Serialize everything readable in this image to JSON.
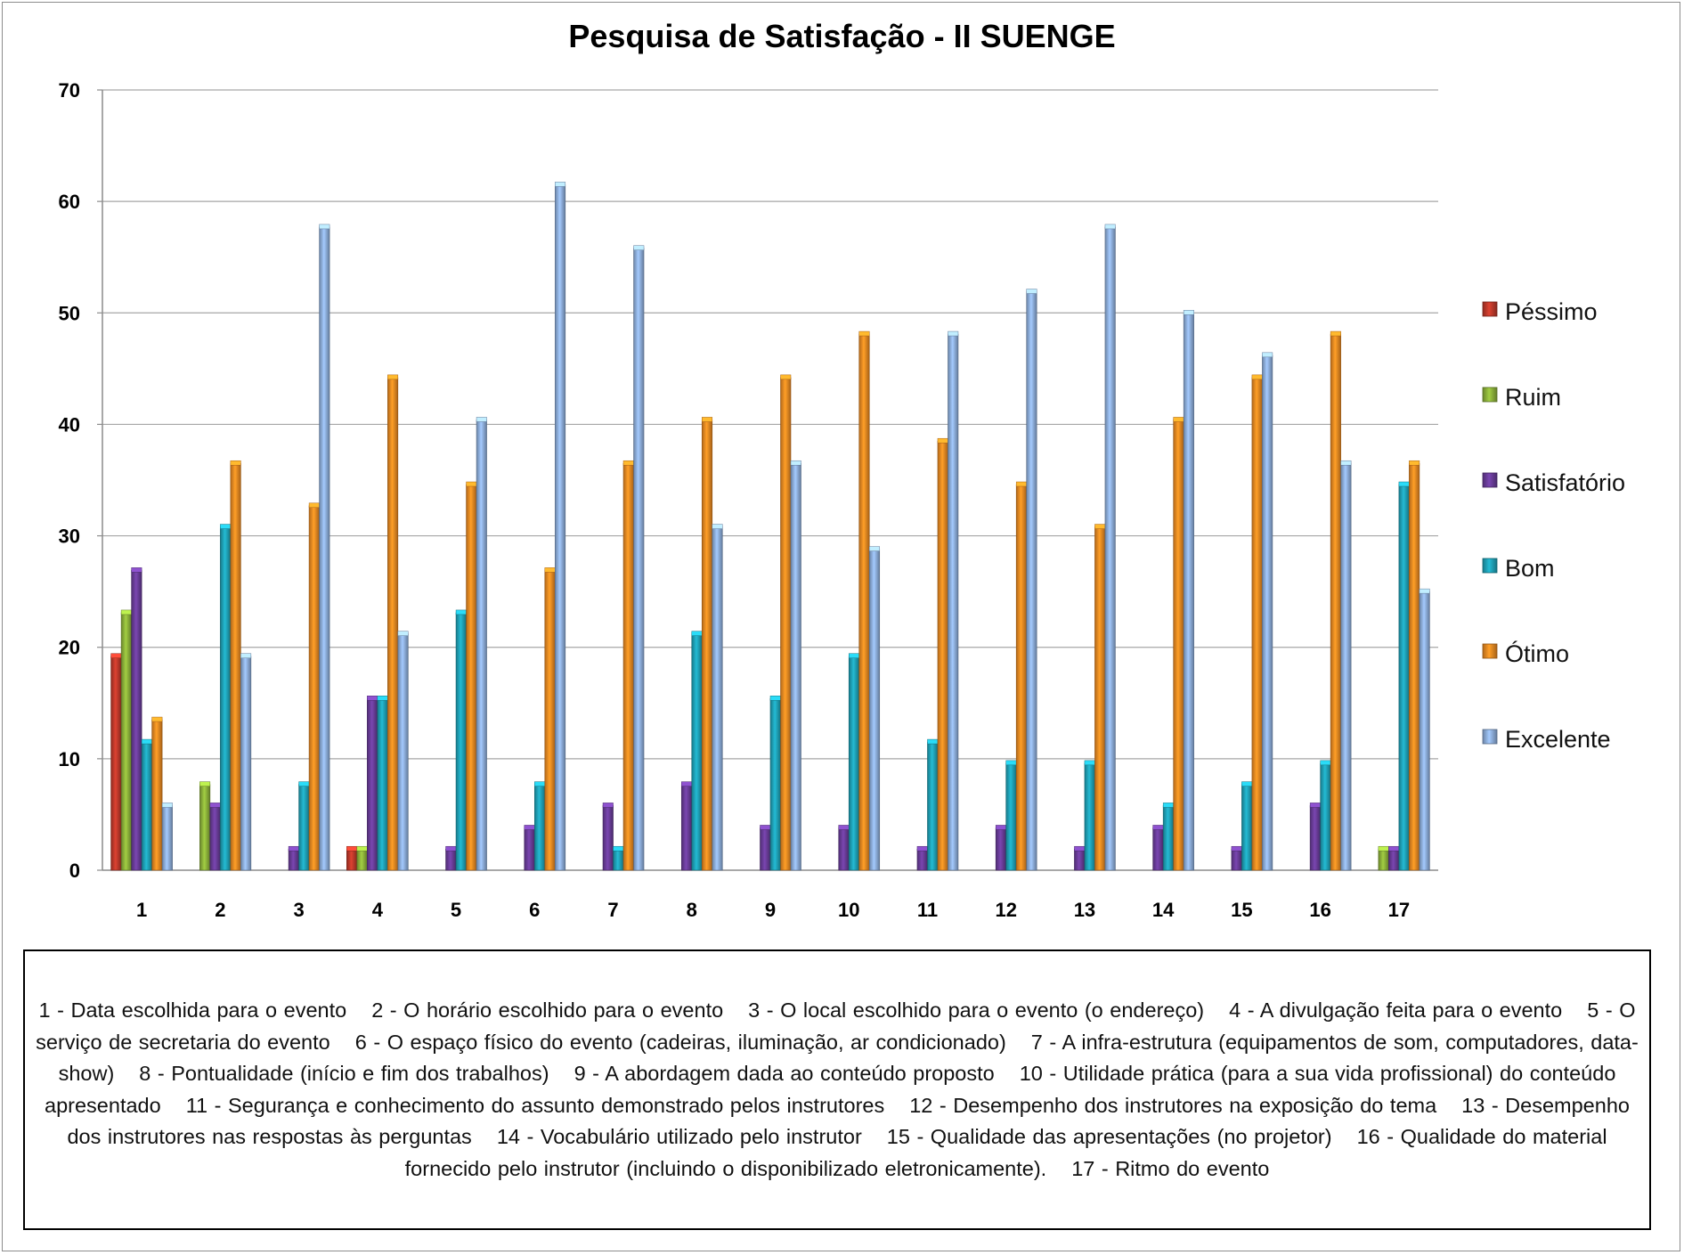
{
  "chart_data": {
    "type": "bar",
    "title": "Pesquisa de Satisfação - II SUENGE",
    "xlabel": "",
    "ylabel": "",
    "ylim": [
      0,
      70
    ],
    "yticks": [
      0,
      10,
      20,
      30,
      40,
      50,
      60,
      70
    ],
    "grid": true,
    "legend_position": "right",
    "categories": [
      "1",
      "2",
      "3",
      "4",
      "5",
      "6",
      "7",
      "8",
      "9",
      "10",
      "11",
      "12",
      "13",
      "14",
      "15",
      "16",
      "17"
    ],
    "series": [
      {
        "name": "Péssimo",
        "color": "#c0392b",
        "values": [
          19.2,
          0,
          0,
          1.9,
          0,
          0,
          0,
          0,
          0,
          0,
          0,
          0,
          0,
          0,
          0,
          0,
          0
        ]
      },
      {
        "name": "Ruim",
        "color": "#8db33a",
        "values": [
          23.1,
          7.7,
          0,
          1.9,
          0,
          0,
          0,
          0,
          0,
          0,
          0,
          0,
          0,
          0,
          0,
          0,
          1.9
        ]
      },
      {
        "name": "Satisfatório",
        "color": "#6a3d9a",
        "values": [
          26.9,
          5.8,
          1.9,
          15.4,
          1.9,
          3.8,
          5.8,
          7.7,
          3.8,
          3.8,
          1.9,
          3.8,
          1.9,
          3.8,
          1.9,
          5.8,
          1.9
        ]
      },
      {
        "name": "Bom",
        "color": "#1fa3b8",
        "values": [
          11.5,
          30.8,
          7.7,
          15.4,
          23.1,
          7.7,
          1.9,
          21.2,
          15.4,
          19.2,
          11.5,
          9.6,
          9.6,
          5.8,
          7.7,
          9.6,
          34.6
        ]
      },
      {
        "name": "Ótimo",
        "color": "#ee8a22",
        "values": [
          13.5,
          36.5,
          32.7,
          44.2,
          34.6,
          26.9,
          36.5,
          40.4,
          44.2,
          48.1,
          38.5,
          34.6,
          30.8,
          40.4,
          44.2,
          48.1,
          36.5
        ]
      },
      {
        "name": "Excelente",
        "color": "#8fb0dd",
        "values": [
          5.8,
          19.2,
          57.7,
          21.2,
          40.4,
          61.5,
          55.8,
          30.8,
          36.5,
          28.8,
          48.1,
          51.9,
          57.7,
          50.0,
          46.2,
          36.5,
          25.0
        ]
      }
    ]
  },
  "caption": {
    "items": [
      "1 - Data escolhida para o evento",
      "2 - O horário escolhido para o evento",
      "3 - O local escolhido para o evento (o endereço)",
      "4 - A divulgação feita para o evento",
      "5 - O serviço de secretaria do evento",
      "6 - O espaço físico do evento (cadeiras, iluminação, ar condicionado)",
      "7 - A infra-estrutura (equipamentos de som, computadores, data-show)",
      "8 - Pontualidade (início e fim dos trabalhos)",
      "9 - A abordagem dada ao conteúdo proposto",
      "10 - Utilidade prática (para a sua vida profissional) do conteúdo apresentado",
      "11 - Segurança e conhecimento do assunto demonstrado pelos instrutores",
      "12 - Desempenho dos instrutores na exposição do tema",
      "13 - Desempenho dos instrutores nas respostas às perguntas",
      "14 - Vocabulário utilizado pelo instrutor",
      "15 - Qualidade das apresentações (no projetor)",
      "16 - Qualidade do material fornecido pelo instrutor (incluindo o disponibilizado eletronicamente).",
      "17 - Ritmo do evento"
    ]
  }
}
